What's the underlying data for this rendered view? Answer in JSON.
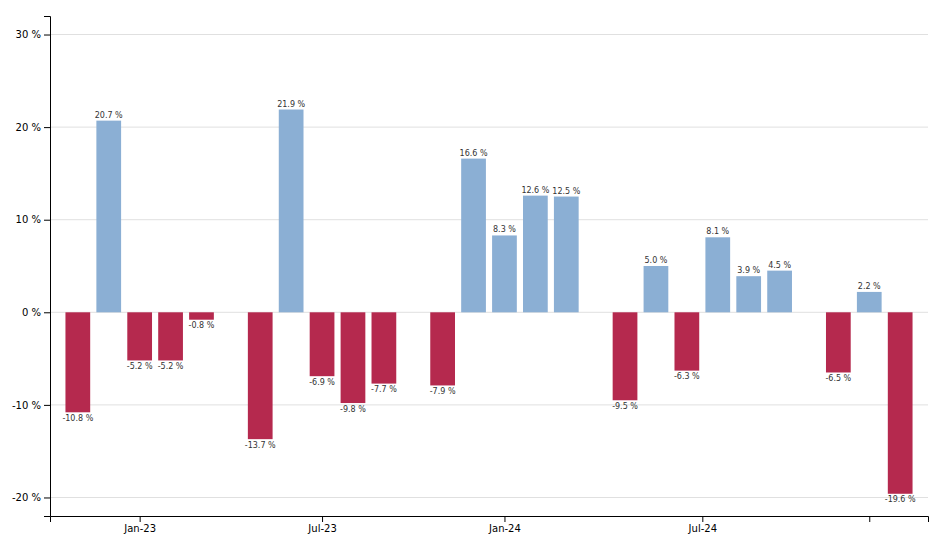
{
  "chart_data": {
    "type": "bar",
    "categories": [
      "Jan-23",
      "Jul-23",
      "Jan-24",
      "Jul-24",
      null
    ],
    "series": [
      {
        "values": [
          -10.8,
          -13.7,
          -7.9,
          -9.5,
          -6.5
        ],
        "colors": [
          "#B5294E",
          "#B5294E",
          "#B5294E",
          "#B5294E",
          "#B5294E"
        ],
        "value_labels": [
          "-10.8 %",
          "-13.7 %",
          "-7.9 %",
          "-9.5 %",
          "-6.5 %"
        ]
      },
      {
        "values": [
          20.7,
          21.9,
          16.6,
          5.0,
          2.2
        ],
        "colors": [
          "#8BAFD4",
          "#8BAFD4",
          "#8BAFD4",
          "#8BAFD4",
          "#8BAFD4"
        ],
        "value_labels": [
          "20.7 %",
          "21.9 %",
          "16.6 %",
          "5.0 %",
          "2.2 %"
        ]
      },
      {
        "values": [
          -5.2,
          -6.9,
          8.3,
          -6.3,
          -19.6
        ],
        "colors": [
          "#B5294E",
          "#B5294E",
          "#8BAFD4",
          "#B5294E",
          "#B5294E"
        ],
        "value_labels": [
          "-5.2 %",
          "-6.9 %",
          "8.3 %",
          "-6.3 %",
          "-19.6 %"
        ]
      },
      {
        "values": [
          -5.2,
          -9.8,
          12.6,
          8.1,
          null
        ],
        "colors": [
          "#B5294E",
          "#B5294E",
          "#8BAFD4",
          "#8BAFD4",
          null
        ],
        "value_labels": [
          "-5.2 %",
          "-9.8 %",
          "12.6 %",
          "8.1 %",
          null
        ]
      },
      {
        "values": [
          -0.8,
          -7.7,
          12.5,
          3.9,
          null
        ],
        "colors": [
          "#B5294E",
          "#B5294E",
          "#8BAFD4",
          "#8BAFD4",
          null
        ],
        "value_labels": [
          "-0.8 %",
          "-7.7 %",
          "12.5 %",
          "3.9 %",
          null
        ]
      },
      {
        "values": [
          null,
          null,
          null,
          4.5,
          null
        ],
        "colors": [
          null,
          null,
          null,
          "#8BAFD4",
          null
        ],
        "value_labels": [
          null,
          null,
          null,
          "4.5 %",
          null
        ]
      }
    ],
    "ylim": [
      -22,
      32
    ],
    "yticks": [
      {
        "value": -20,
        "label": "-20 %"
      },
      {
        "value": -10,
        "label": "-10 %"
      },
      {
        "value": 0,
        "label": "0 %"
      },
      {
        "value": 10,
        "label": "10 %"
      },
      {
        "value": 20,
        "label": "20 %"
      },
      {
        "value": 30,
        "label": "30 %"
      }
    ],
    "grid": true,
    "data_labels": true
  }
}
